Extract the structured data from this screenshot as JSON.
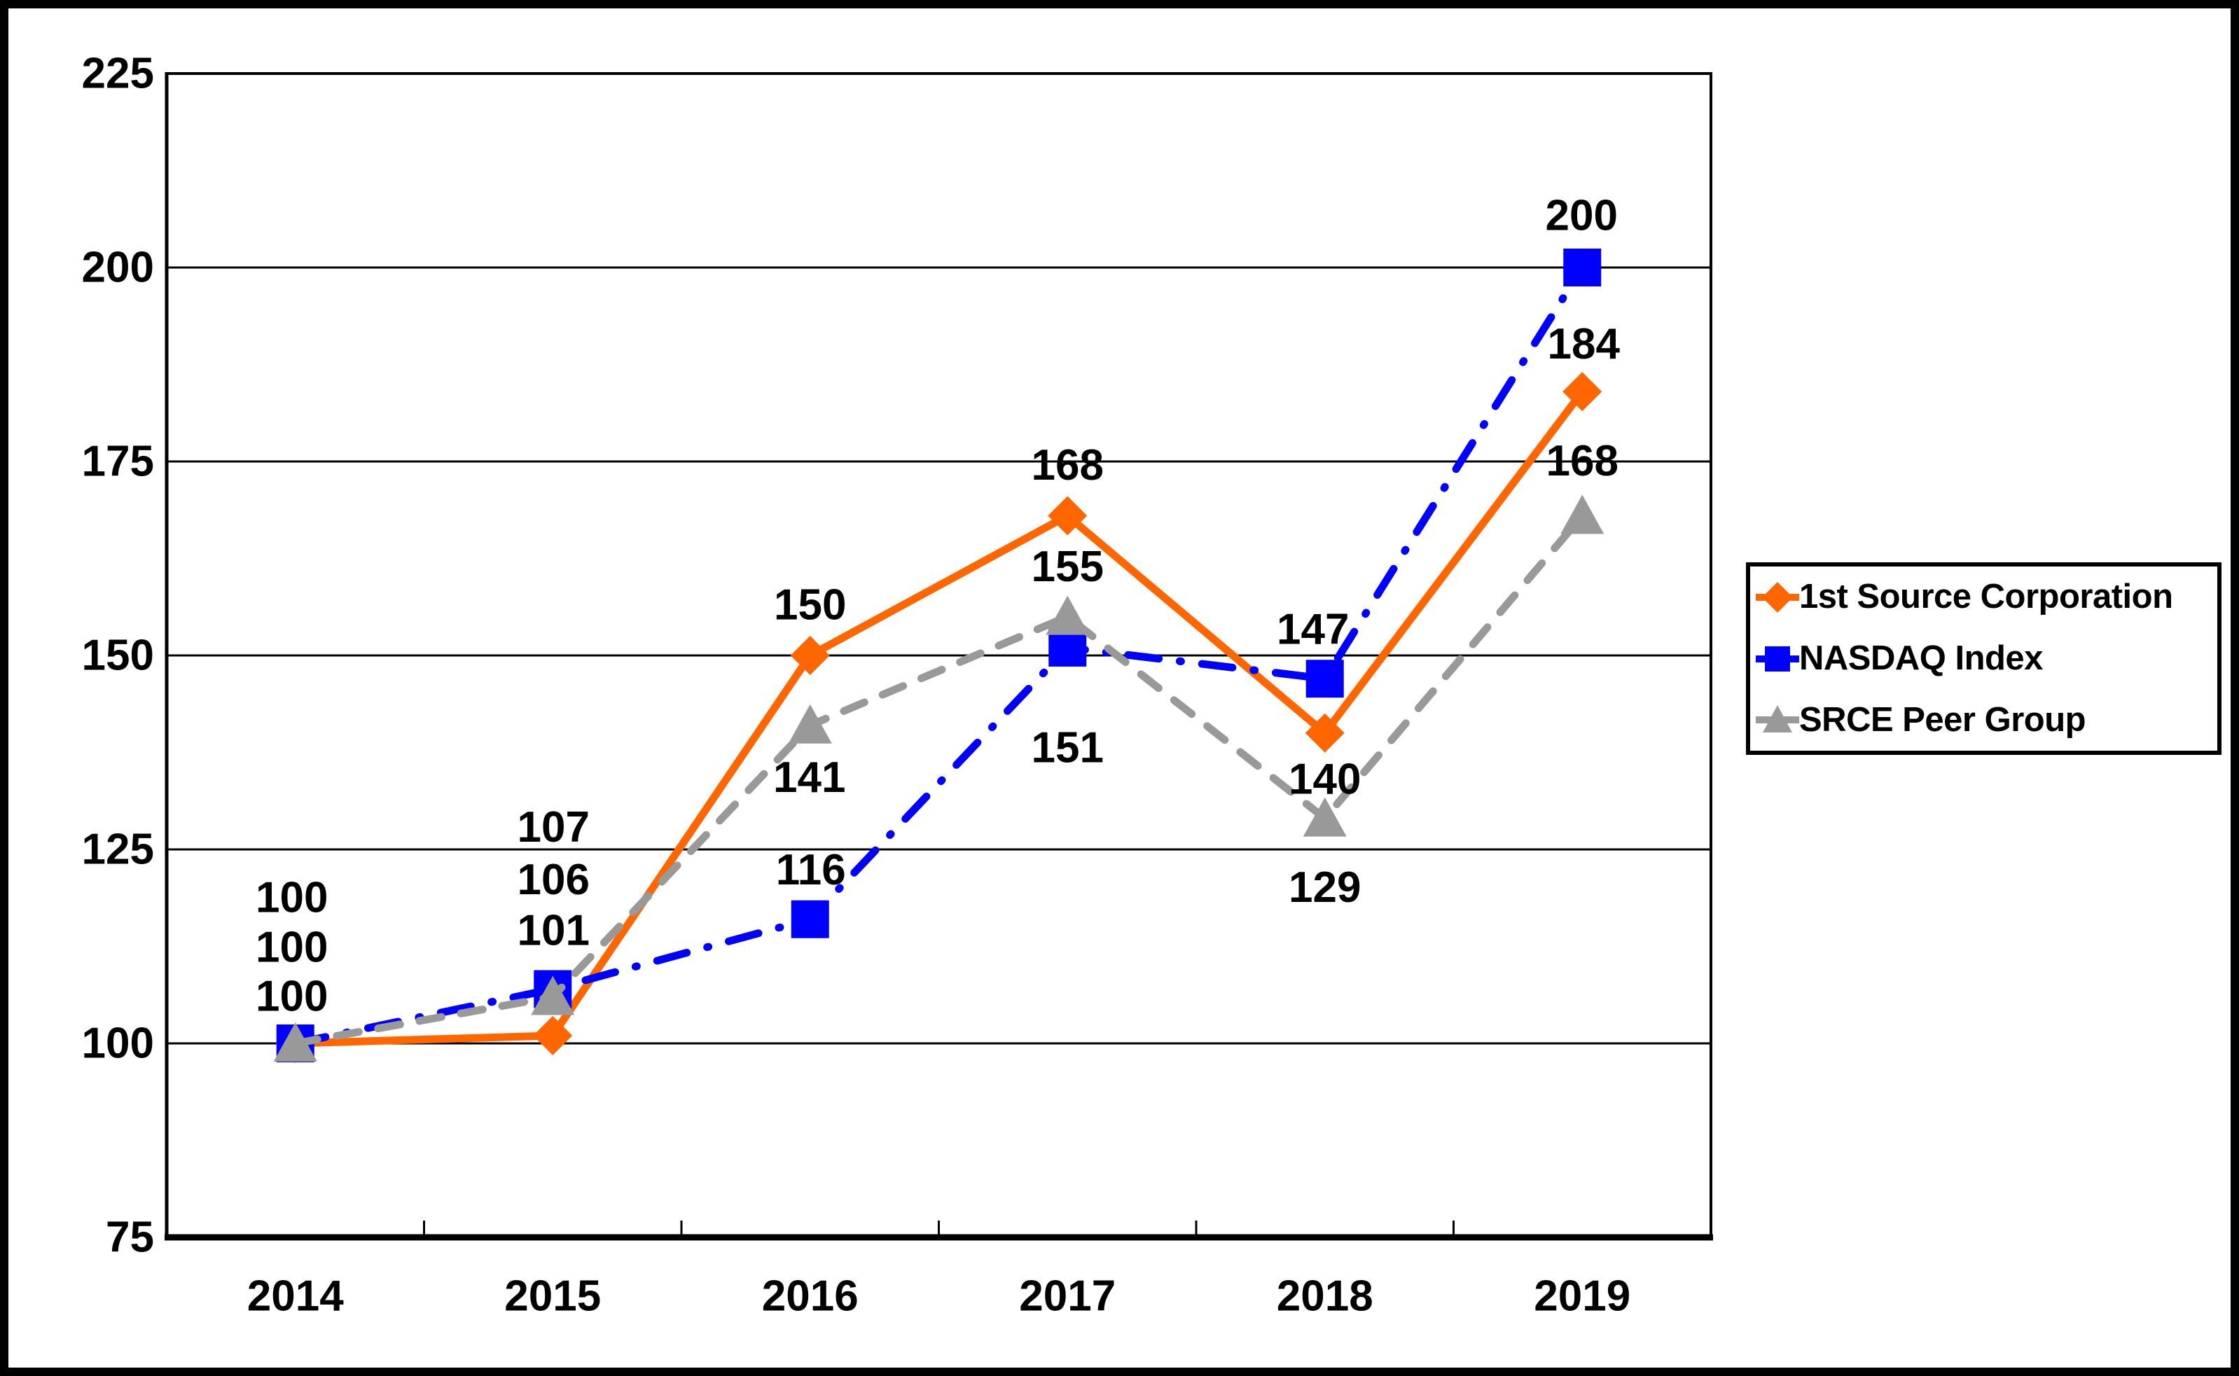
{
  "page": {
    "background": "#FFFFFF",
    "frame_color": "#000000"
  },
  "chart_data": {
    "type": "line",
    "title": "",
    "xlabel": "",
    "ylabel": "",
    "categories": [
      "2014",
      "2015",
      "2016",
      "2017",
      "2018",
      "2019"
    ],
    "series": [
      {
        "name": "1st Source Corporation",
        "color": "#FF6600",
        "marker": "diamond",
        "line_style": "solid",
        "values": [
          100,
          101,
          150,
          168,
          140,
          184
        ]
      },
      {
        "name": "NASDAQ Index",
        "color": "#0000FF",
        "marker": "square",
        "line_style": "dash-dot",
        "values": [
          100,
          107,
          116,
          151,
          147,
          200
        ]
      },
      {
        "name": "SRCE Peer Group",
        "color": "#999999",
        "marker": "triangle",
        "line_style": "dashed",
        "values": [
          100,
          106,
          141,
          155,
          129,
          168
        ]
      }
    ],
    "ylim": [
      75,
      225
    ],
    "ytick_step": 25,
    "ytick_labels": [
      "75",
      "100",
      "125",
      "150",
      "175",
      "200",
      "225"
    ],
    "grid": true,
    "gridline_color": "#000000",
    "legend_position": "right",
    "data_labels_shown": true
  }
}
